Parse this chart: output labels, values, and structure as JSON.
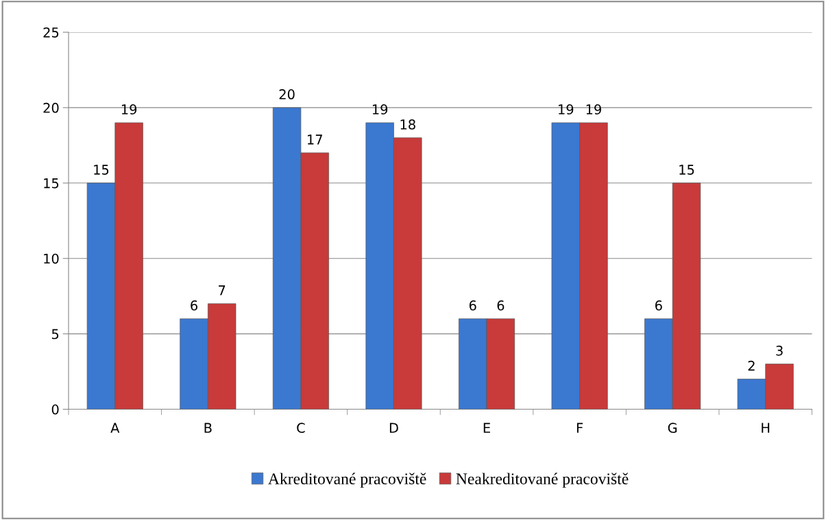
{
  "chart_data": {
    "type": "bar",
    "categories": [
      "A",
      "B",
      "C",
      "D",
      "E",
      "F",
      "G",
      "H"
    ],
    "series": [
      {
        "name": "Akreditované pracoviště",
        "color": "#3b78d0",
        "values": [
          15,
          6,
          20,
          19,
          6,
          19,
          6,
          2
        ]
      },
      {
        "name": "Neakreditované pracoviště",
        "color": "#c93a3a",
        "values": [
          19,
          7,
          17,
          18,
          6,
          19,
          15,
          3
        ]
      }
    ],
    "ylim": [
      0,
      25
    ],
    "yticks": [
      0,
      5,
      10,
      15,
      20,
      25
    ],
    "grid": "y",
    "legend": "bottom",
    "data_labels": true
  }
}
